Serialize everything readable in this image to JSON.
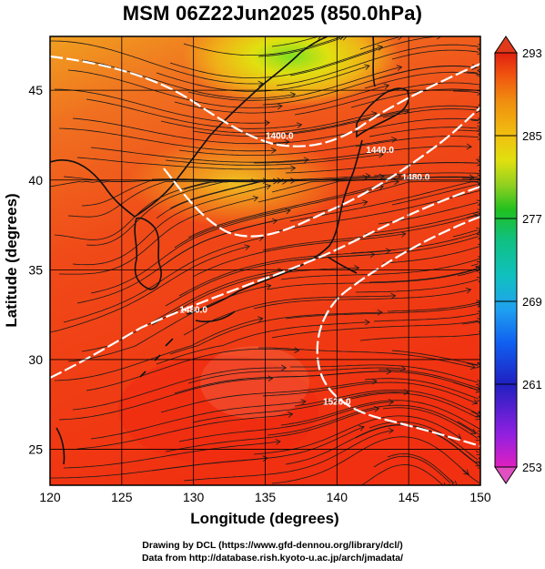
{
  "title": "MSM 06Z22Jun2025 (850.0hPa)",
  "map": {
    "xlabel": "Longitude (degrees)",
    "ylabel": "Latitude  (degrees)",
    "lon_range": [
      120,
      150
    ],
    "lat_range": [
      23,
      48
    ],
    "lon_ticks": [
      "120",
      "125",
      "130",
      "135",
      "140",
      "145",
      "150"
    ],
    "lat_ticks": [
      "25",
      "30",
      "35",
      "40",
      "45"
    ],
    "grid": true,
    "field": "temperature",
    "overlay": "wind streamlines",
    "contours": [
      {
        "label": "1400.0",
        "lon": 136.0,
        "lat": 42.3
      },
      {
        "label": "1440.0",
        "lon": 143.0,
        "lat": 41.5
      },
      {
        "label": "1480.0",
        "lon": 145.5,
        "lat": 40.0
      },
      {
        "label": "1480.0",
        "lon": 130.0,
        "lat": 32.6
      },
      {
        "label": "1520.0",
        "lon": 140.0,
        "lat": 27.5
      }
    ]
  },
  "colorbar": {
    "labels": [
      "293",
      "285",
      "277",
      "269",
      "261",
      "253"
    ],
    "min": 253,
    "max": 293,
    "colors": [
      "#e020c0",
      "#9020e0",
      "#2020c0",
      "#1060f0",
      "#20a0f0",
      "#10c0c0",
      "#10c080",
      "#20c020",
      "#90d020",
      "#e0e010",
      "#f0c010",
      "#f09010",
      "#f05010",
      "#e02010"
    ]
  },
  "credits": {
    "line1": "Drawing by DCL (https://www.gfd-dennou.org/library/dcl/)",
    "line2": "Data from http://database.rish.kyoto-u.ac.jp/arch/jmadata/"
  }
}
